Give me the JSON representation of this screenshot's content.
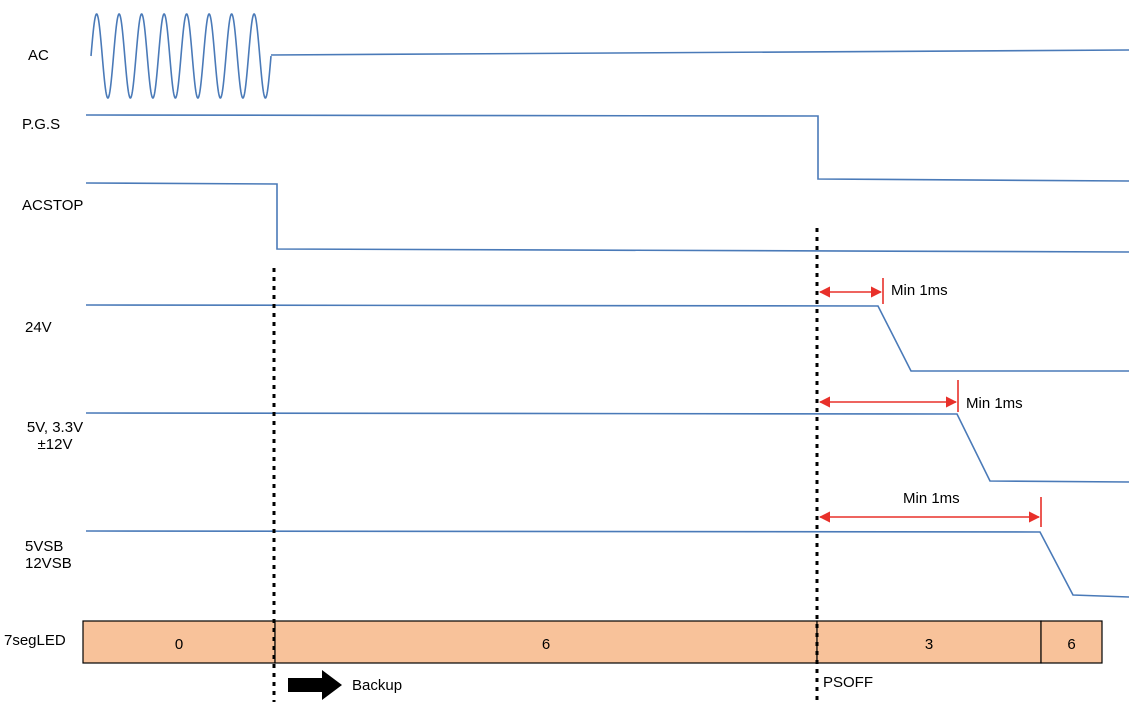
{
  "signals": {
    "ac": "AC",
    "pgs": "P.G.S",
    "acstop": "ACSTOP",
    "v24": "24V",
    "v5_line1": "5V, 3.3V",
    "v5_line2": "±12V",
    "vsb_line1": "5VSB",
    "vsb_line2": "12VSB",
    "seg": "7segLED"
  },
  "seg_values": [
    "0",
    "6",
    "3",
    "6"
  ],
  "annotations": {
    "min1": "Min 1ms",
    "min2": "Min 1ms",
    "min3": "Min 1ms",
    "backup": "Backup",
    "psoff": "PSOFF"
  },
  "colors": {
    "waveform": "#4a7ab8",
    "marker": "#e8302a",
    "led_fill": "#f8c29a",
    "divider": "#000000"
  }
}
